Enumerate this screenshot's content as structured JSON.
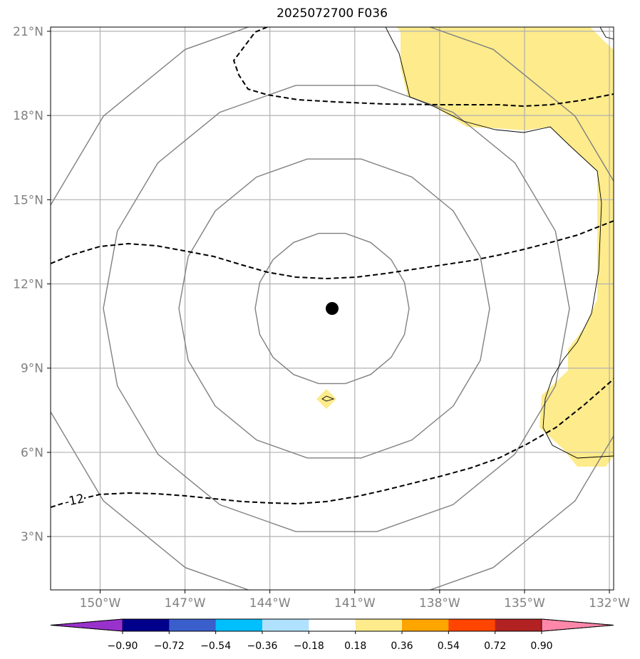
{
  "title": "2025072700 F036",
  "map": {
    "lat_labels": [
      "21°N",
      "18°N",
      "15°N",
      "12°N",
      "9°N",
      "6°N",
      "3°N"
    ],
    "lon_labels": [
      "150°W",
      "147°W",
      "144°W",
      "141°W",
      "138°W",
      "135°W",
      "132°W"
    ],
    "contour_label": "-12",
    "storm_marker": {
      "lon": -141.8,
      "lat": 11.2
    },
    "fill_color": "#fdeb8c",
    "grid_color": "#b0b0b0",
    "contour_color": "#808080"
  },
  "colorbar": {
    "labels": [
      "−0.90",
      "−0.72",
      "−0.54",
      "−0.36",
      "−0.18",
      "0.18",
      "0.36",
      "0.54",
      "0.72",
      "0.90"
    ],
    "colors": [
      "#9932cc",
      "#00008b",
      "#3a5fcd",
      "#00bfff",
      "#b0e2ff",
      "#ffffff",
      "#fdeb8c",
      "#ffa500",
      "#ff4500",
      "#b22222",
      "#ff88aa"
    ]
  }
}
